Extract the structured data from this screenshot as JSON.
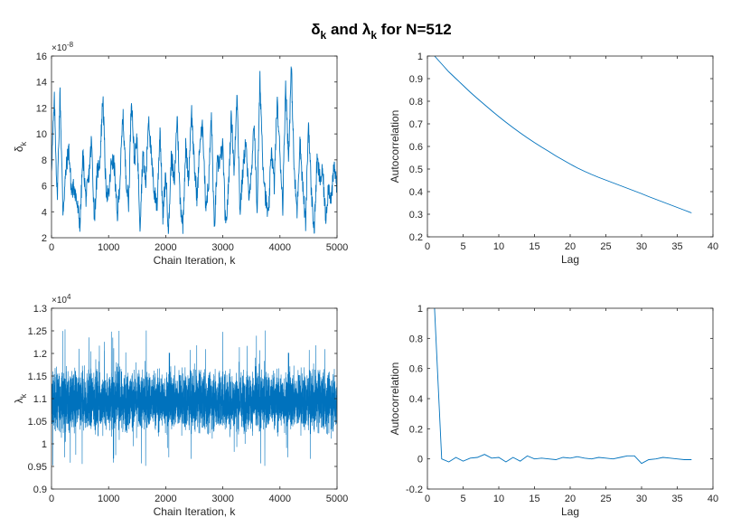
{
  "figure": {
    "title": "δk and λk for N=512",
    "title_parts": {
      "sym1": "δ",
      "sub1": "k",
      "mid": " and ",
      "sym2": "λ",
      "sub2": "k",
      "end": " for N=512"
    }
  },
  "colors": {
    "line": "#0072BD",
    "axis": "#262626",
    "background": "#ffffff"
  },
  "chart_data": [
    {
      "id": "delta_trace",
      "type": "line",
      "xlabel": "Chain Iteration, k",
      "ylabel": "δk",
      "ylabel_parts": {
        "sym": "δ",
        "sub": "k"
      },
      "exponent_label": "×10",
      "exponent": "-8",
      "xlim": [
        0,
        5000
      ],
      "ylim": [
        2,
        16
      ],
      "xticks": [
        0,
        1000,
        2000,
        3000,
        4000,
        5000
      ],
      "yticks": [
        2,
        4,
        6,
        8,
        10,
        12,
        14,
        16
      ],
      "grid": false,
      "series": [
        {
          "sampled": true,
          "x": [
            0,
            50,
            100,
            150,
            200,
            250,
            300,
            350,
            400,
            450,
            500,
            550,
            600,
            650,
            700,
            750,
            800,
            850,
            900,
            950,
            1000,
            1050,
            1100,
            1150,
            1200,
            1250,
            1300,
            1350,
            1400,
            1450,
            1500,
            1550,
            1600,
            1650,
            1700,
            1750,
            1800,
            1850,
            1900,
            1950,
            2000,
            2050,
            2100,
            2150,
            2200,
            2250,
            2300,
            2350,
            2400,
            2450,
            2500,
            2550,
            2600,
            2650,
            2700,
            2750,
            2800,
            2850,
            2900,
            2950,
            3000,
            3050,
            3100,
            3150,
            3200,
            3250,
            3300,
            3350,
            3400,
            3450,
            3500,
            3550,
            3600,
            3650,
            3700,
            3750,
            3800,
            3850,
            3900,
            3950,
            4000,
            4050,
            4100,
            4150,
            4200,
            4250,
            4300,
            4350,
            4400,
            4450,
            4500,
            4550,
            4600,
            4650,
            4700,
            4750,
            4800,
            4850,
            4900,
            4950,
            5000
          ],
          "y": [
            7.5,
            12.5,
            5.0,
            13.2,
            4.0,
            7.0,
            9.0,
            5.5,
            6.0,
            4.5,
            3.0,
            8.5,
            5.0,
            6.5,
            9.5,
            3.5,
            7.0,
            8.0,
            13.0,
            6.0,
            5.0,
            8.0,
            7.5,
            3.5,
            6.5,
            11.5,
            7.0,
            4.5,
            13.0,
            8.0,
            9.5,
            3.0,
            8.5,
            6.0,
            11.5,
            8.0,
            5.5,
            4.5,
            10.5,
            3.5,
            7.0,
            2.5,
            8.5,
            6.0,
            11.5,
            5.0,
            3.0,
            9.0,
            6.5,
            12.0,
            7.5,
            5.0,
            9.5,
            10.5,
            4.5,
            6.0,
            11.5,
            2.5,
            7.5,
            8.0,
            9.0,
            2.5,
            6.0,
            11.5,
            7.0,
            13.5,
            4.0,
            7.0,
            9.5,
            5.5,
            6.5,
            11.0,
            4.0,
            14.2,
            8.0,
            5.0,
            3.5,
            9.0,
            6.0,
            12.5,
            8.5,
            4.5,
            14.0,
            8.0,
            15.2,
            7.0,
            4.0,
            9.5,
            6.0,
            3.0,
            11.0,
            5.5,
            2.5,
            8.0,
            6.5,
            7.0,
            3.5,
            6.0,
            5.0,
            7.5,
            6.0
          ]
        }
      ]
    },
    {
      "id": "delta_acf",
      "type": "line",
      "xlabel": "Lag",
      "ylabel": "Autocorrelation",
      "xlim": [
        0,
        40
      ],
      "ylim": [
        0.2,
        1
      ],
      "xticks": [
        0,
        5,
        10,
        15,
        20,
        25,
        30,
        35,
        40
      ],
      "yticks": [
        0.2,
        0.3,
        0.4,
        0.5,
        0.6,
        0.7,
        0.8,
        0.9,
        1
      ],
      "grid": false,
      "series": [
        {
          "x": [
            1,
            2,
            3,
            4,
            5,
            6,
            7,
            8,
            9,
            10,
            11,
            12,
            13,
            14,
            15,
            16,
            17,
            18,
            19,
            20,
            21,
            22,
            23,
            24,
            25,
            26,
            27,
            28,
            29,
            30,
            31,
            32,
            33,
            34,
            35,
            36,
            37
          ],
          "y": [
            1.0,
            0.965,
            0.93,
            0.9,
            0.87,
            0.84,
            0.812,
            0.785,
            0.758,
            0.732,
            0.707,
            0.683,
            0.66,
            0.638,
            0.617,
            0.597,
            0.578,
            0.558,
            0.54,
            0.522,
            0.505,
            0.49,
            0.476,
            0.463,
            0.451,
            0.439,
            0.427,
            0.415,
            0.403,
            0.391,
            0.378,
            0.366,
            0.354,
            0.342,
            0.33,
            0.318,
            0.306
          ]
        }
      ]
    },
    {
      "id": "lambda_trace",
      "type": "line",
      "xlabel": "Chain Iteration, k",
      "ylabel": "λk",
      "ylabel_parts": {
        "sym": "λ",
        "sub": "k"
      },
      "exponent_label": "×10",
      "exponent": "4",
      "xlim": [
        0,
        5000
      ],
      "ylim": [
        0.9,
        1.3
      ],
      "xticks": [
        0,
        1000,
        2000,
        3000,
        4000,
        5000
      ],
      "yticks": [
        0.9,
        0.95,
        1,
        1.05,
        1.1,
        1.15,
        1.2,
        1.25,
        1.3
      ],
      "grid": false,
      "series": [
        {
          "noise": true,
          "mean": 1.095,
          "spread": 0.06,
          "min": 0.935,
          "max": 1.255,
          "n_points": 5000
        }
      ]
    },
    {
      "id": "lambda_acf",
      "type": "line",
      "xlabel": "Lag",
      "ylabel": "Autocorrelation",
      "xlim": [
        0,
        40
      ],
      "ylim": [
        -0.2,
        1
      ],
      "xticks": [
        0,
        5,
        10,
        15,
        20,
        25,
        30,
        35,
        40
      ],
      "yticks": [
        -0.2,
        0,
        0.2,
        0.4,
        0.6,
        0.8,
        1
      ],
      "grid": false,
      "series": [
        {
          "x": [
            1,
            2,
            3,
            4,
            5,
            6,
            7,
            8,
            9,
            10,
            11,
            12,
            13,
            14,
            15,
            16,
            17,
            18,
            19,
            20,
            21,
            22,
            23,
            24,
            25,
            26,
            27,
            28,
            29,
            30,
            31,
            32,
            33,
            34,
            35,
            36,
            37
          ],
          "y": [
            1.0,
            0.0,
            -0.02,
            0.01,
            -0.015,
            0.005,
            0.01,
            0.03,
            0.005,
            0.01,
            -0.02,
            0.01,
            -0.015,
            0.02,
            0.0,
            0.005,
            0.0,
            -0.005,
            0.01,
            0.005,
            0.015,
            0.005,
            0.0,
            0.01,
            0.005,
            0.0,
            0.01,
            0.02,
            0.02,
            -0.03,
            -0.005,
            0.0,
            0.01,
            0.005,
            0.0,
            -0.005,
            -0.005
          ]
        }
      ]
    }
  ]
}
